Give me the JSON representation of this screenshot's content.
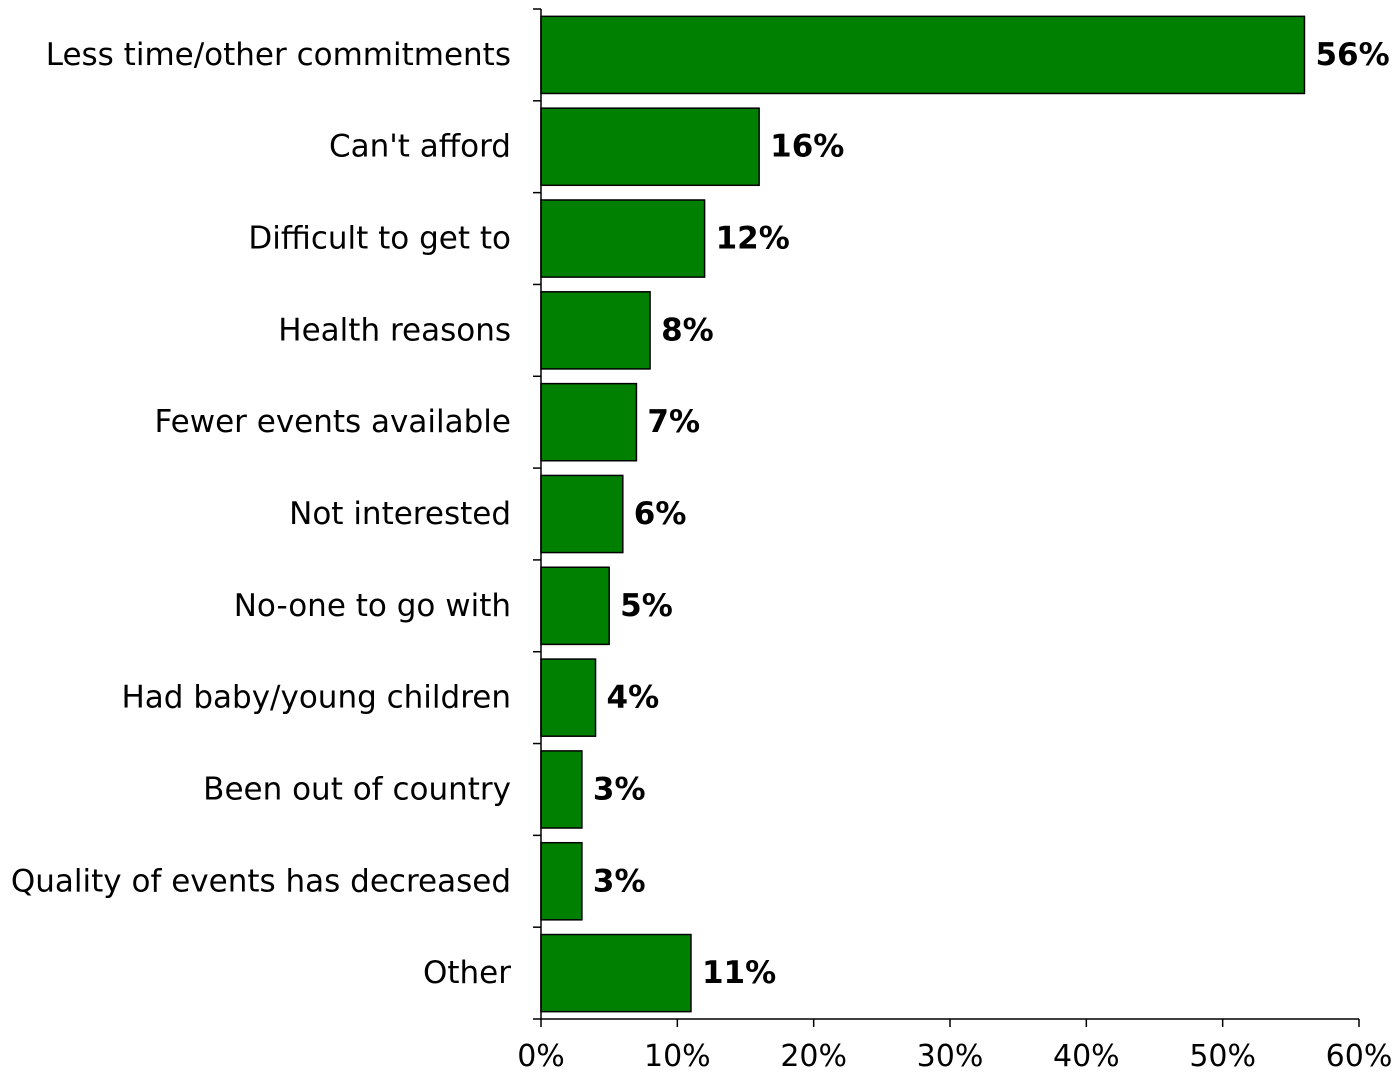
{
  "chart_data": {
    "type": "bar",
    "orientation": "horizontal",
    "title": "",
    "xlabel": "",
    "ylabel": "",
    "categories": [
      "Less time/other commitments",
      "Can't afford",
      "Difficult to get to",
      "Health reasons",
      "Fewer events available",
      "Not interested",
      "No-one to go with",
      "Had baby/young children",
      "Been out of country",
      "Quality of events has decreased",
      "Other"
    ],
    "values": [
      56,
      16,
      12,
      8,
      7,
      6,
      5,
      4,
      3,
      3,
      11
    ],
    "data_labels": [
      "56%",
      "16%",
      "12%",
      "8%",
      "7%",
      "6%",
      "5%",
      "4%",
      "3%",
      "3%",
      "11%"
    ],
    "xlim": [
      0,
      60
    ],
    "xticks": [
      0,
      10,
      20,
      30,
      40,
      50,
      60
    ],
    "xtick_labels": [
      "0%",
      "10%",
      "20%",
      "30%",
      "40%",
      "50%",
      "60%"
    ],
    "grid": false,
    "legend": false,
    "bar_color": "#008000"
  }
}
